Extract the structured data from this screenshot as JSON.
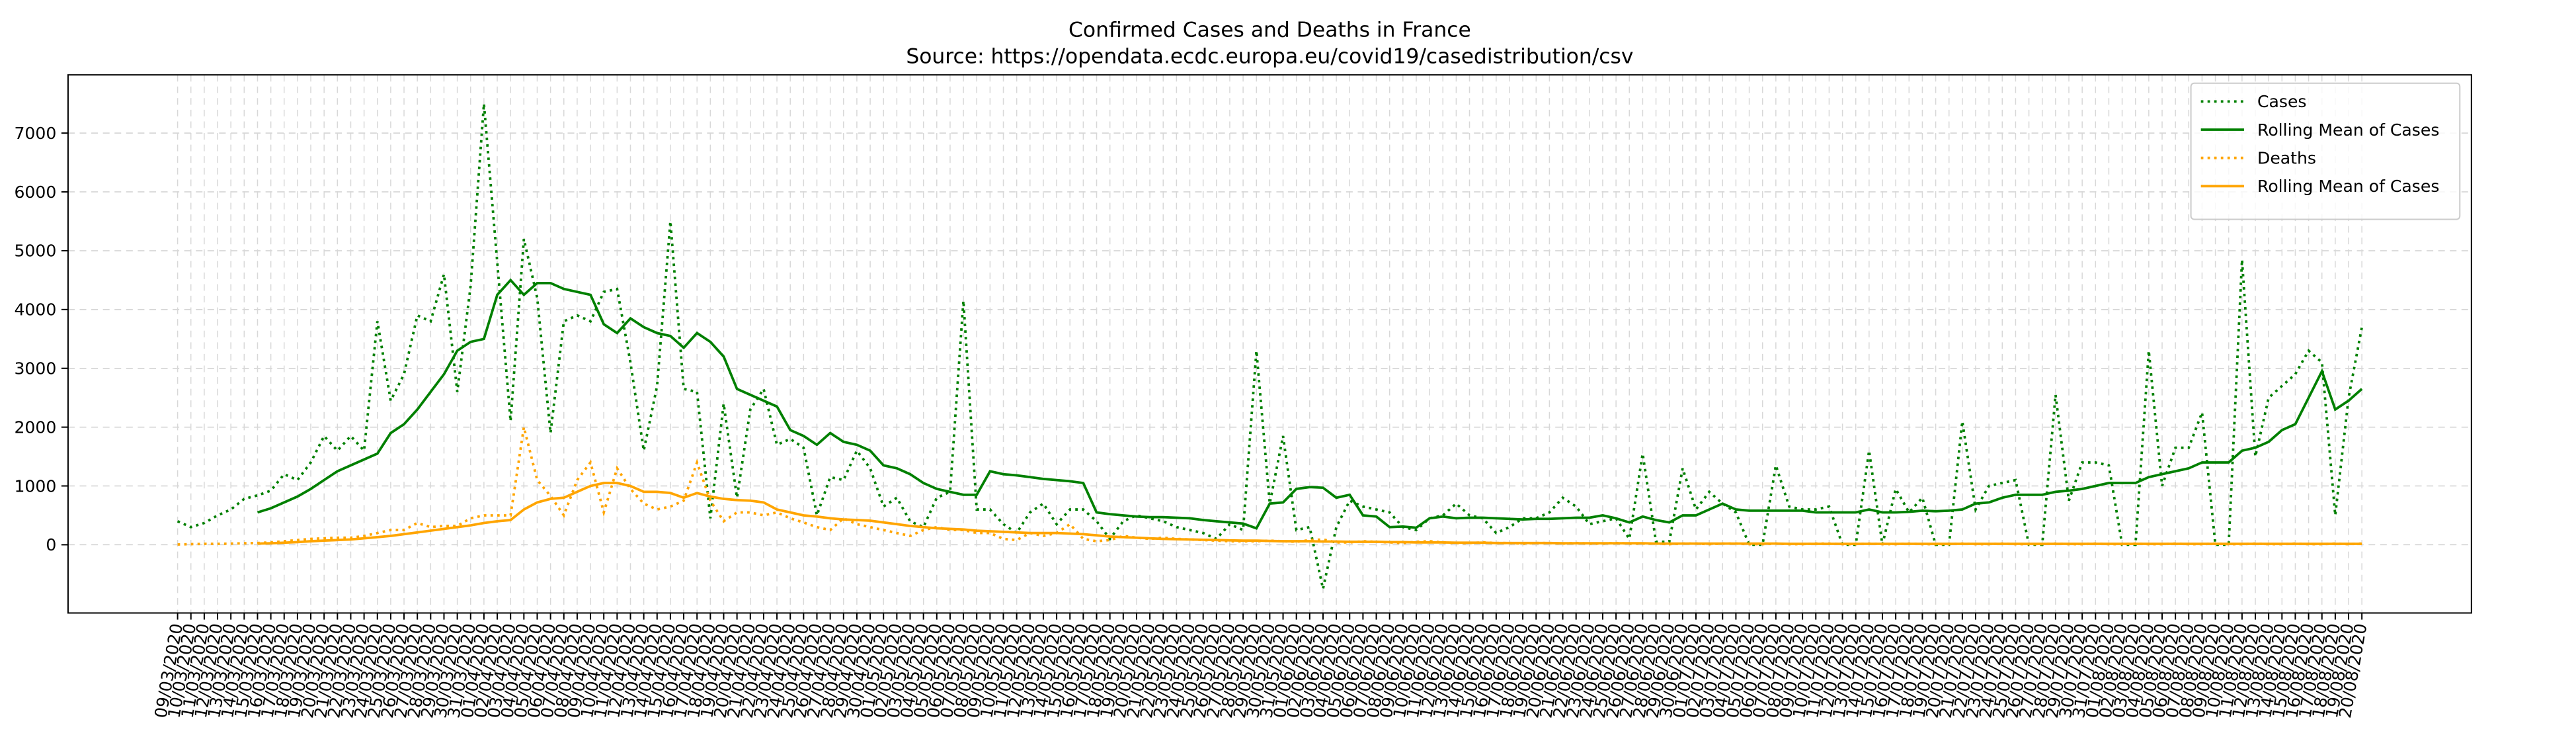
{
  "chart_data": {
    "type": "line",
    "title": "Confirmed Cases and Deaths in France",
    "subtitle": "Source: https://opendata.ecdc.europa.eu/covid19/casedistribution/csv",
    "categories": [
      "09/03/2020",
      "10/03/2020",
      "11/03/2020",
      "12/03/2020",
      "13/03/2020",
      "14/03/2020",
      "15/03/2020",
      "16/03/2020",
      "17/03/2020",
      "18/03/2020",
      "19/03/2020",
      "20/03/2020",
      "21/03/2020",
      "22/03/2020",
      "23/03/2020",
      "24/03/2020",
      "25/03/2020",
      "26/03/2020",
      "27/03/2020",
      "28/03/2020",
      "29/03/2020",
      "30/03/2020",
      "31/03/2020",
      "01/04/2020",
      "02/04/2020",
      "03/04/2020",
      "04/04/2020",
      "05/04/2020",
      "06/04/2020",
      "07/04/2020",
      "08/04/2020",
      "09/04/2020",
      "10/04/2020",
      "11/04/2020",
      "12/04/2020",
      "13/04/2020",
      "14/04/2020",
      "15/04/2020",
      "16/04/2020",
      "17/04/2020",
      "18/04/2020",
      "19/04/2020",
      "20/04/2020",
      "21/04/2020",
      "22/04/2020",
      "23/04/2020",
      "24/04/2020",
      "25/04/2020",
      "26/04/2020",
      "27/04/2020",
      "28/04/2020",
      "29/04/2020",
      "30/04/2020",
      "01/05/2020",
      "02/05/2020",
      "03/05/2020",
      "04/05/2020",
      "05/05/2020",
      "06/05/2020",
      "07/05/2020",
      "08/05/2020",
      "09/05/2020",
      "10/05/2020",
      "11/05/2020",
      "12/05/2020",
      "13/05/2020",
      "14/05/2020",
      "15/05/2020",
      "16/05/2020",
      "17/05/2020",
      "18/05/2020",
      "19/05/2020",
      "20/05/2020",
      "21/05/2020",
      "22/05/2020",
      "23/05/2020",
      "24/05/2020",
      "25/05/2020",
      "26/05/2020",
      "27/05/2020",
      "28/05/2020",
      "29/05/2020",
      "30/05/2020",
      "31/05/2020",
      "01/06/2020",
      "02/06/2020",
      "03/06/2020",
      "04/06/2020",
      "05/06/2020",
      "06/06/2020",
      "07/06/2020",
      "08/06/2020",
      "09/06/2020",
      "10/06/2020",
      "11/06/2020",
      "12/06/2020",
      "13/06/2020",
      "14/06/2020",
      "15/06/2020",
      "16/06/2020",
      "17/06/2020",
      "18/06/2020",
      "19/06/2020",
      "20/06/2020",
      "21/06/2020",
      "22/06/2020",
      "23/06/2020",
      "24/06/2020",
      "25/06/2020",
      "26/06/2020",
      "27/06/2020",
      "28/06/2020",
      "29/06/2020",
      "30/06/2020",
      "01/07/2020",
      "02/07/2020",
      "03/07/2020",
      "04/07/2020",
      "05/07/2020",
      "06/07/2020",
      "07/07/2020",
      "08/07/2020",
      "09/07/2020",
      "10/07/2020",
      "11/07/2020",
      "12/07/2020",
      "13/07/2020",
      "14/07/2020",
      "15/07/2020",
      "16/07/2020",
      "17/07/2020",
      "18/07/2020",
      "19/07/2020",
      "20/07/2020",
      "21/07/2020",
      "22/07/2020",
      "23/07/2020",
      "24/07/2020",
      "25/07/2020",
      "26/07/2020",
      "27/07/2020",
      "28/07/2020",
      "29/07/2020",
      "30/07/2020",
      "31/07/2020",
      "01/08/2020",
      "02/08/2020",
      "03/08/2020",
      "04/08/2020",
      "05/08/2020",
      "06/08/2020",
      "07/08/2020",
      "08/08/2020",
      "09/08/2020",
      "10/08/2020",
      "11/08/2020",
      "12/08/2020",
      "13/08/2020",
      "14/08/2020",
      "15/08/2020",
      "16/08/2020",
      "17/08/2020",
      "18/08/2020",
      "19/08/2020",
      "20/08/2020"
    ],
    "series": [
      {
        "name": "Cases",
        "color": "#008000",
        "style": "dotted",
        "values": [
          400,
          300,
          370,
          500,
          600,
          780,
          840,
          920,
          1200,
          1100,
          1400,
          1850,
          1600,
          1850,
          1600,
          3800,
          2450,
          2900,
          3900,
          3800,
          4600,
          2600,
          4400,
          7500,
          4800,
          2100,
          5200,
          4200,
          1900,
          3800,
          3900,
          3800,
          4300,
          4350,
          3100,
          1600,
          2700,
          5500,
          2650,
          2600,
          450,
          2400,
          800,
          2300,
          2650,
          1700,
          1800,
          1650,
          500,
          1150,
          1100,
          1600,
          1300,
          650,
          800,
          400,
          300,
          800,
          900,
          4150,
          600,
          600,
          350,
          200,
          550,
          700,
          350,
          600,
          600,
          400,
          100,
          400,
          500,
          450,
          400,
          300,
          250,
          200,
          100,
          350,
          250,
          3300,
          700,
          1850,
          250,
          300,
          -750,
          300,
          750,
          650,
          600,
          550,
          300,
          250,
          450,
          500,
          700,
          500,
          450,
          200,
          300,
          450,
          450,
          550,
          800,
          650,
          350,
          400,
          450,
          100,
          1550,
          50,
          50,
          1300,
          600,
          900,
          700,
          550,
          0,
          0,
          1350,
          650,
          600,
          600,
          650,
          0,
          0,
          1600,
          0,
          950,
          550,
          800,
          0,
          0,
          2100,
          600,
          1000,
          1050,
          1100,
          0,
          0,
          2550,
          750,
          1400,
          1400,
          1350,
          0,
          0,
          3300,
          1000,
          1650,
          1650,
          2250,
          0,
          0,
          4850,
          1500,
          2500,
          2700,
          2900,
          3300,
          3100,
          500,
          2500,
          3700
        ]
      },
      {
        "name": "Rolling Mean of Cases",
        "color": "#008000",
        "style": "solid",
        "values": [
          null,
          null,
          null,
          null,
          null,
          null,
          550,
          620,
          720,
          820,
          950,
          1100,
          1250,
          1350,
          1450,
          1550,
          1900,
          2050,
          2300,
          2600,
          2900,
          3300,
          3450,
          3500,
          4250,
          4500,
          4250,
          4450,
          4450,
          4350,
          4300,
          4250,
          3750,
          3600,
          3850,
          3700,
          3600,
          3550,
          3350,
          3600,
          3450,
          3200,
          2650,
          2550,
          2450,
          2350,
          1950,
          1850,
          1700,
          1900,
          1750,
          1700,
          1600,
          1350,
          1300,
          1200,
          1050,
          950,
          900,
          850,
          850,
          1250,
          1200,
          1180,
          1150,
          1120,
          1100,
          1080,
          1050,
          550,
          520,
          500,
          480,
          470,
          470,
          460,
          450,
          420,
          400,
          380,
          360,
          280,
          700,
          720,
          950,
          980,
          970,
          800,
          850,
          500,
          480,
          300,
          310,
          290,
          450,
          480,
          450,
          460,
          460,
          450,
          440,
          430,
          440,
          440,
          450,
          460,
          460,
          500,
          450,
          380,
          480,
          420,
          380,
          500,
          500,
          600,
          700,
          600,
          580,
          580,
          580,
          580,
          580,
          550,
          550,
          550,
          550,
          600,
          550,
          550,
          560,
          580,
          570,
          580,
          600,
          700,
          720,
          800,
          850,
          850,
          850,
          900,
          920,
          950,
          1000,
          1050,
          1050,
          1050,
          1150,
          1200,
          1250,
          1300,
          1400,
          1400,
          1400,
          1600,
          1650,
          1750,
          1950,
          2050,
          2500,
          2950,
          2300,
          2450,
          2650
        ]
      },
      {
        "name": "Deaths",
        "color": "#ffa500",
        "style": "dotted",
        "values": [
          5,
          10,
          15,
          15,
          20,
          25,
          30,
          40,
          60,
          80,
          100,
          110,
          120,
          120,
          150,
          200,
          250,
          250,
          370,
          300,
          320,
          320,
          450,
          500,
          500,
          500,
          2000,
          1100,
          830,
          500,
          1100,
          1400,
          550,
          1300,
          950,
          700,
          600,
          650,
          750,
          1400,
          750,
          400,
          550,
          550,
          500,
          550,
          450,
          380,
          300,
          250,
          450,
          350,
          300,
          250,
          200,
          150,
          250,
          300,
          250,
          250,
          200,
          200,
          100,
          80,
          200,
          150,
          200,
          350,
          100,
          60,
          80,
          150,
          120,
          100,
          120,
          100,
          90,
          80,
          70,
          60,
          60,
          60,
          70,
          60,
          50,
          80,
          90,
          40,
          40,
          60,
          50,
          40,
          30,
          50,
          60,
          40,
          30,
          30,
          40,
          30,
          30,
          20,
          30,
          30,
          20,
          30,
          20,
          20,
          30,
          20,
          20,
          20,
          10,
          20,
          20,
          10,
          20,
          20,
          10,
          10,
          20,
          10,
          10,
          20,
          20,
          10,
          10,
          20,
          10,
          10,
          20,
          10,
          10,
          10,
          20,
          10,
          10,
          20,
          10,
          10,
          10,
          20,
          10,
          10,
          20,
          10,
          10,
          20,
          10,
          10,
          20,
          10,
          10,
          20,
          10,
          10,
          20,
          10,
          10,
          20,
          10,
          10,
          20,
          10,
          20
        ]
      },
      {
        "name": "Rolling Mean of Cases",
        "color": "#ffa500",
        "style": "solid",
        "values": [
          null,
          null,
          null,
          null,
          null,
          null,
          20,
          25,
          35,
          45,
          60,
          70,
          80,
          90,
          110,
          130,
          150,
          180,
          210,
          240,
          270,
          300,
          330,
          370,
          400,
          420,
          600,
          720,
          780,
          800,
          900,
          1000,
          1050,
          1050,
          1000,
          900,
          900,
          880,
          800,
          880,
          820,
          780,
          760,
          750,
          720,
          600,
          550,
          500,
          480,
          450,
          430,
          420,
          410,
          380,
          350,
          320,
          300,
          280,
          270,
          260,
          240,
          230,
          220,
          210,
          200,
          200,
          200,
          190,
          180,
          160,
          140,
          130,
          120,
          110,
          100,
          95,
          90,
          85,
          80,
          75,
          70,
          70,
          65,
          60,
          60,
          60,
          55,
          55,
          50,
          50,
          50,
          45,
          45,
          40,
          40,
          40,
          35,
          35,
          35,
          30,
          30,
          30,
          30,
          30,
          25,
          25,
          25,
          25,
          25,
          25,
          25,
          20,
          20,
          20,
          20,
          20,
          20,
          20,
          20,
          20,
          20,
          15,
          15,
          15,
          15,
          15,
          15,
          15,
          15,
          15,
          15,
          15,
          15,
          15,
          15,
          15,
          15,
          15,
          15,
          15,
          15,
          15,
          15,
          15,
          15,
          15,
          15,
          15,
          15,
          15,
          15,
          15,
          15,
          15,
          15,
          15,
          15,
          15,
          15,
          15,
          15,
          15,
          15,
          15,
          15
        ]
      }
    ],
    "ylim": [
      -1160,
      7990
    ],
    "yticks": [
      0,
      1000,
      2000,
      3000,
      4000,
      5000,
      6000,
      7000
    ],
    "grid": true,
    "legend": "upper right"
  }
}
